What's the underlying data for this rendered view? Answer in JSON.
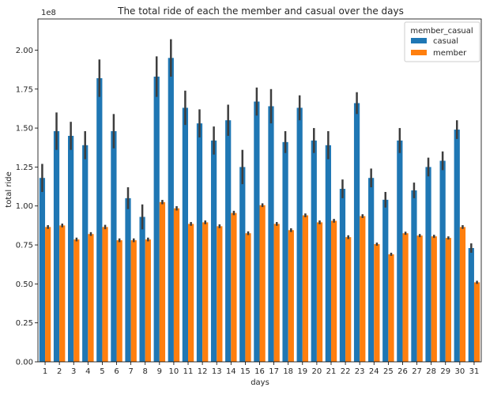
{
  "chart_data": {
    "type": "bar",
    "title": "The total ride of each the member and casual over the days",
    "xlabel": "days",
    "ylabel": "total ride",
    "y_offset_label": "1e8",
    "ylim": [
      0,
      2.2
    ],
    "yticks": [
      "0.00",
      "0.25",
      "0.50",
      "0.75",
      "1.00",
      "1.25",
      "1.50",
      "1.75",
      "2.00"
    ],
    "grid": false,
    "legend": {
      "title": "member_casual",
      "placement": "top-right"
    },
    "categories": [
      "1",
      "2",
      "3",
      "4",
      "5",
      "6",
      "7",
      "8",
      "9",
      "10",
      "11",
      "12",
      "13",
      "14",
      "15",
      "16",
      "17",
      "18",
      "19",
      "20",
      "21",
      "22",
      "23",
      "24",
      "25",
      "26",
      "27",
      "28",
      "29",
      "30",
      "31"
    ],
    "series": [
      {
        "name": "casual",
        "color": "#1f77b4",
        "values": [
          1.18,
          1.48,
          1.45,
          1.39,
          1.82,
          1.48,
          1.05,
          0.93,
          1.83,
          1.95,
          1.63,
          1.53,
          1.42,
          1.55,
          1.25,
          1.67,
          1.64,
          1.41,
          1.63,
          1.42,
          1.39,
          1.11,
          1.66,
          1.18,
          1.04,
          1.42,
          1.1,
          1.25,
          1.29,
          1.49,
          0.73
        ],
        "error": [
          0.09,
          0.12,
          0.09,
          0.09,
          0.12,
          0.11,
          0.07,
          0.08,
          0.13,
          0.12,
          0.11,
          0.09,
          0.09,
          0.1,
          0.11,
          0.09,
          0.11,
          0.07,
          0.08,
          0.08,
          0.09,
          0.06,
          0.07,
          0.06,
          0.05,
          0.08,
          0.05,
          0.06,
          0.06,
          0.06,
          0.03
        ]
      },
      {
        "name": "member",
        "color": "#ff7f0e",
        "values": [
          0.865,
          0.875,
          0.785,
          0.82,
          0.865,
          0.78,
          0.78,
          0.785,
          1.025,
          0.985,
          0.885,
          0.895,
          0.87,
          0.955,
          0.825,
          1.005,
          0.885,
          0.845,
          0.94,
          0.895,
          0.905,
          0.8,
          0.935,
          0.755,
          0.69,
          0.825,
          0.81,
          0.805,
          0.795,
          0.865,
          0.51
        ],
        "error": [
          0.012,
          0.012,
          0.012,
          0.012,
          0.014,
          0.012,
          0.012,
          0.012,
          0.014,
          0.014,
          0.012,
          0.012,
          0.012,
          0.014,
          0.012,
          0.012,
          0.012,
          0.012,
          0.012,
          0.012,
          0.012,
          0.012,
          0.012,
          0.01,
          0.01,
          0.01,
          0.01,
          0.01,
          0.01,
          0.012,
          0.01
        ]
      }
    ]
  }
}
